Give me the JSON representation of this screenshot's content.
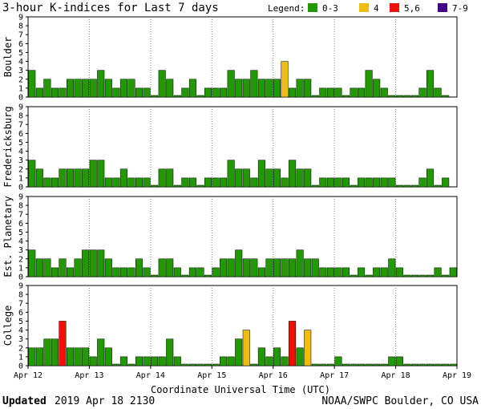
{
  "title": "3-hour K-indices for Last 7 days",
  "legend": {
    "label": "Legend:",
    "items": [
      {
        "label": "0-3",
        "color": "#229900"
      },
      {
        "label": "4",
        "color": "#eebb11"
      },
      {
        "label": "5,6",
        "color": "#ee1100"
      },
      {
        "label": "7-9",
        "color": "#440088"
      }
    ]
  },
  "footer": {
    "updated_label": "Updated",
    "updated_value": "2019 Apr 18 2130",
    "credit": "NOAA/SWPC Boulder, CO USA"
  },
  "chart_data": {
    "type": "bar",
    "xlabel": "Coordinate Universal Time (UTC)",
    "x_ticks": [
      "Apr 12",
      "Apr 13",
      "Apr 14",
      "Apr 15",
      "Apr 16",
      "Apr 17",
      "Apr 18",
      "Apr 19"
    ],
    "ylim": [
      0,
      9
    ],
    "y_ticks": [
      0,
      1,
      2,
      3,
      4,
      5,
      6,
      7,
      8,
      9
    ],
    "bars_per_day": 8,
    "color_thresholds": {
      "green_max": 3,
      "yellow": 4,
      "red_max": 6
    },
    "series": [
      {
        "name": "Boulder",
        "values": [
          3,
          1,
          2,
          1,
          1,
          2,
          2,
          2,
          2,
          3,
          2,
          1,
          2,
          2,
          1,
          1,
          0,
          3,
          2,
          0,
          1,
          2,
          0,
          1,
          1,
          1,
          3,
          2,
          2,
          3,
          2,
          2,
          2,
          4,
          1,
          2,
          2,
          0,
          1,
          1,
          1,
          0,
          1,
          1,
          3,
          2,
          1,
          0,
          0,
          0,
          0,
          1,
          3,
          1,
          0
        ]
      },
      {
        "name": "Fredericksburg",
        "values": [
          3,
          2,
          1,
          1,
          2,
          2,
          2,
          2,
          3,
          3,
          1,
          1,
          2,
          1,
          1,
          1,
          0,
          2,
          2,
          0,
          1,
          1,
          0,
          1,
          1,
          1,
          3,
          2,
          2,
          1,
          3,
          2,
          2,
          1,
          3,
          2,
          2,
          0,
          1,
          1,
          1,
          1,
          0,
          1,
          1,
          1,
          1,
          1,
          0,
          0,
          0,
          1,
          2,
          0,
          1
        ]
      },
      {
        "name": "Est. Planetary",
        "values": [
          3,
          2,
          2,
          1,
          2,
          1,
          2,
          3,
          3,
          3,
          2,
          1,
          1,
          1,
          2,
          1,
          0,
          2,
          2,
          1,
          0,
          1,
          1,
          0,
          1,
          2,
          2,
          3,
          2,
          2,
          1,
          2,
          2,
          2,
          2,
          3,
          2,
          2,
          1,
          1,
          1,
          1,
          0,
          1,
          0,
          1,
          1,
          2,
          1,
          0,
          0,
          0,
          0,
          1,
          0,
          1
        ]
      },
      {
        "name": "College",
        "values": [
          2,
          2,
          3,
          3,
          5,
          2,
          2,
          2,
          1,
          3,
          2,
          0,
          1,
          0,
          1,
          1,
          1,
          1,
          3,
          1,
          0,
          0,
          0,
          0,
          0,
          1,
          1,
          3,
          4,
          0,
          2,
          1,
          2,
          1,
          5,
          2,
          4,
          0,
          0,
          0,
          1,
          0,
          0,
          0,
          0,
          0,
          0,
          1,
          1,
          0,
          0,
          0,
          0,
          0,
          0,
          0
        ]
      }
    ]
  }
}
